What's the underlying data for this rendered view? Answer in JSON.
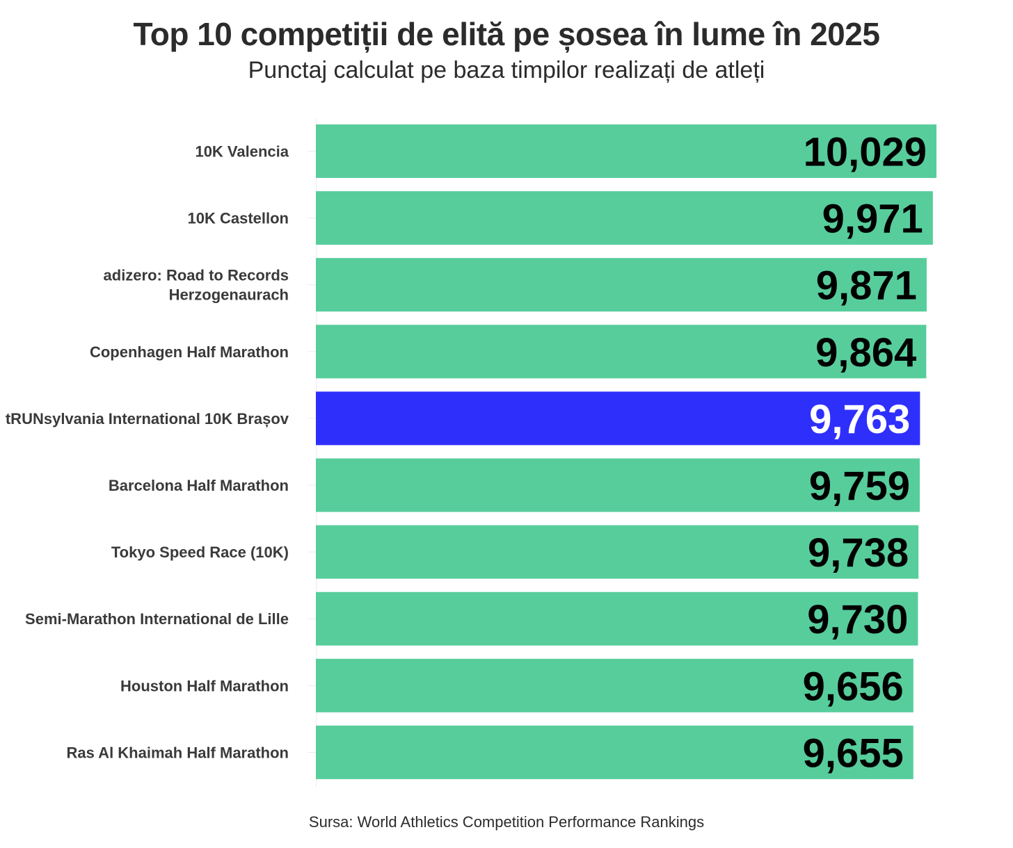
{
  "chart_data": {
    "type": "bar",
    "orientation": "horizontal",
    "title": "Top 10 competiții de elită pe șosea în lume în 2025",
    "subtitle": "Punctaj calculat pe baza timpilor realizați de atleți",
    "caption": "Sursa: World Athletics Competition Performance Rankings",
    "categories": [
      "10K Valencia",
      "10K Castellon",
      "adizero: Road to Records Herzogenaurach",
      "Copenhagen Half Marathon",
      "tRUNsylvania International 10K Brașov",
      "Barcelona Half Marathon",
      "Tokyo Speed Race (10K)",
      "Semi-Marathon International de Lille",
      "Houston Half Marathon",
      "Ras Al Khaimah Half Marathon"
    ],
    "category_lines": [
      [
        "10K Valencia"
      ],
      [
        "10K Castellon"
      ],
      [
        "adizero: Road to Records",
        "Herzogenaurach"
      ],
      [
        "Copenhagen Half Marathon"
      ],
      [
        "tRUNsylvania International 10K Brașov"
      ],
      [
        "Barcelona Half Marathon"
      ],
      [
        "Tokyo Speed Race (10K)"
      ],
      [
        "Semi-Marathon International de Lille"
      ],
      [
        "Houston Half Marathon"
      ],
      [
        "Ras Al Khaimah Half Marathon"
      ]
    ],
    "values": [
      10029,
      9971,
      9871,
      9864,
      9763,
      9759,
      9738,
      9730,
      9656,
      9655
    ],
    "value_labels": [
      "10,029",
      "9,971",
      "9,871",
      "9,864",
      "9,763",
      "9,759",
      "9,738",
      "9,730",
      "9,656",
      "9,655"
    ],
    "highlight": "tRUNsylvania International 10K Brașov",
    "xlim": [
      0,
      10029
    ],
    "grid": false,
    "legend": "none",
    "colors": {
      "bar": "#57cd9c",
      "highlight": "#2f2ffc",
      "label": "#000000",
      "highlight_label": "#ffffff"
    }
  }
}
